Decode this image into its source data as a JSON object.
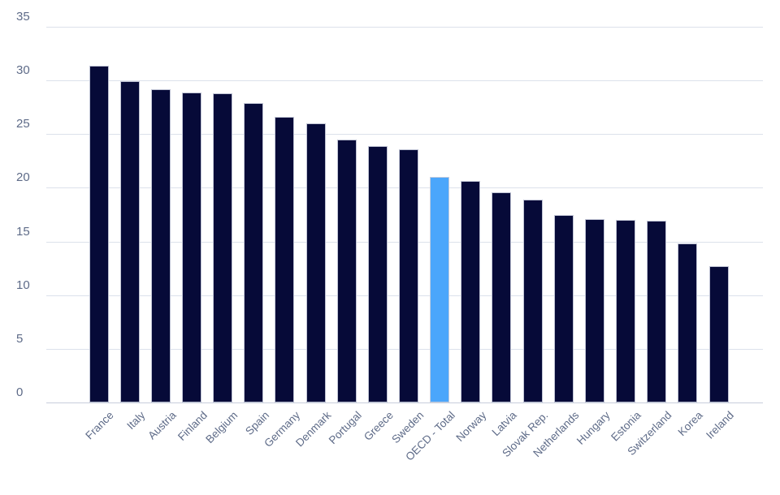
{
  "chart_data": {
    "type": "bar",
    "title": "",
    "xlabel": "",
    "ylabel": "",
    "categories": [
      "France",
      "Italy",
      "Austria",
      "Finland",
      "Belgium",
      "Spain",
      "Germany",
      "Denmark",
      "Portugal",
      "Greece",
      "Sweden",
      "OECD - Total",
      "Norway",
      "Latvia",
      "Slovak Rep.",
      "Netherlands",
      "Hungary",
      "Estonia",
      "Switzerland",
      "Korea",
      "Ireland"
    ],
    "values": [
      31.4,
      29.9,
      29.2,
      28.9,
      28.8,
      27.9,
      26.6,
      26.0,
      24.5,
      23.9,
      23.6,
      21.0,
      20.6,
      19.6,
      18.9,
      17.5,
      17.1,
      17.0,
      16.9,
      14.8,
      12.7
    ],
    "highlight": {
      "category": "OECD - Total",
      "index": 11,
      "color": "#4BA6FB"
    },
    "bar_color": "#060A38",
    "axis_label_color": "#5E6B88",
    "gridline_color": "#DCE1EB",
    "zero_line_color": "#C7CEDB",
    "background_color": "#FFFFFF",
    "ylim": [
      0,
      35
    ],
    "yticks": [
      0,
      5,
      10,
      15,
      20,
      25,
      30,
      35
    ],
    "ytick_labels": [
      "0",
      "5",
      "10",
      "15",
      "20",
      "25",
      "30",
      "35"
    ],
    "grid": "horizontal",
    "legend": "none",
    "x_label_rotation_deg": -45
  }
}
